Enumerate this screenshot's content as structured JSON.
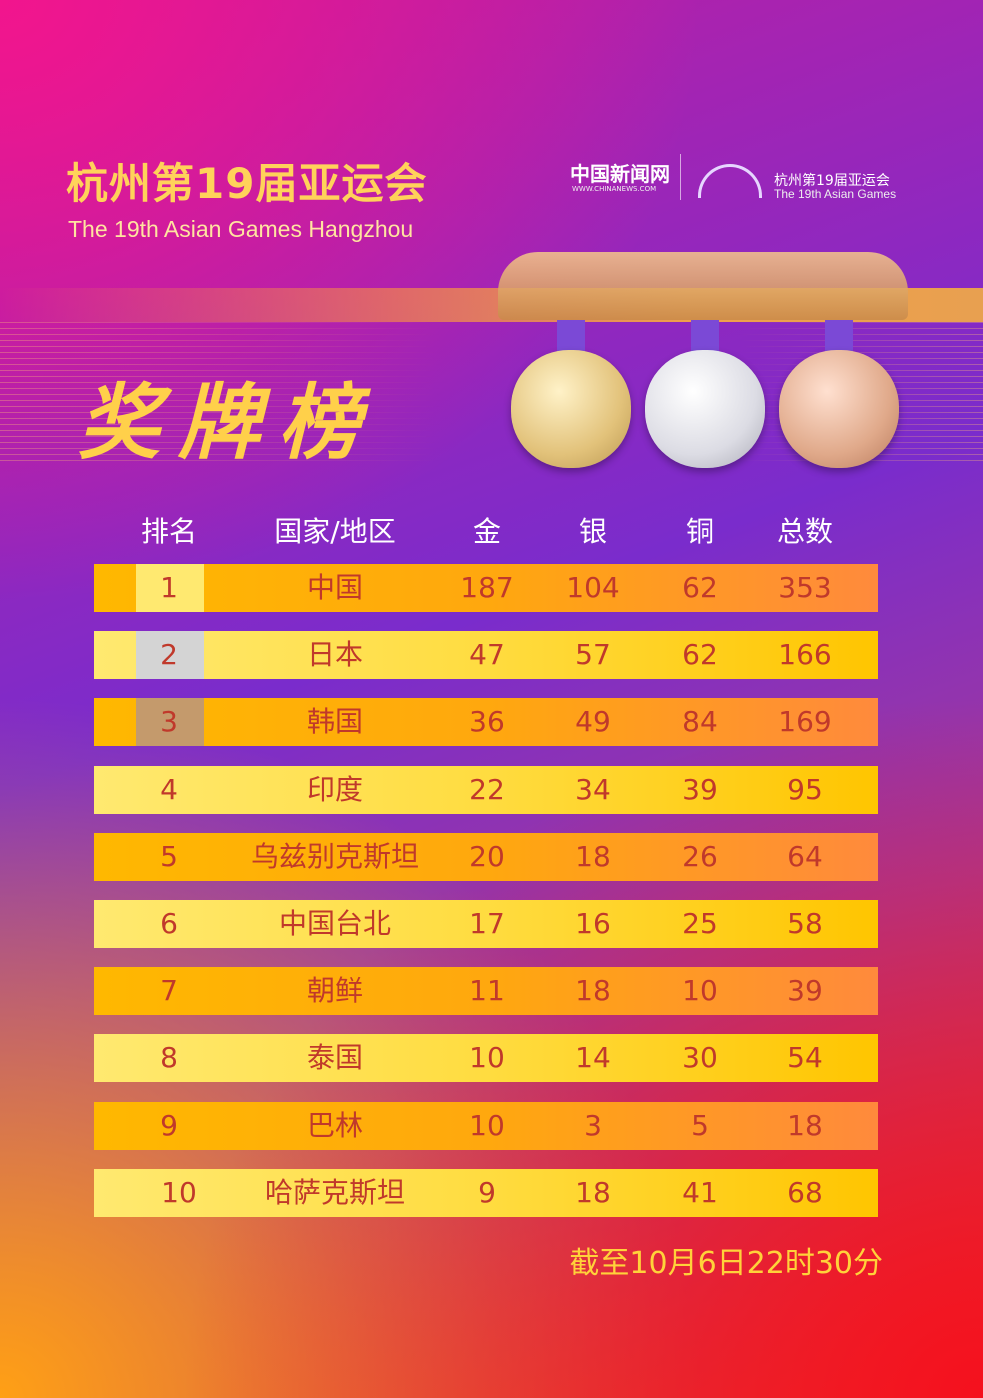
{
  "header": {
    "title_cn": "杭州第19届亚运会",
    "title_en": "The 19th Asian Games Hangzhou",
    "heading": "奖牌榜"
  },
  "logos": {
    "chinanews": "中国新闻网",
    "chinanews_url": "WWW.CHINANEWS.COM",
    "asiangames_cn": "杭州第19届亚运会",
    "asiangames_en": "The 19th Asian Games"
  },
  "colors": {
    "gold_rank": "#ffe970",
    "silver_rank": "#d4d4d4",
    "bronze_rank": "#c49a6c",
    "text": "#c0392b",
    "heading": "#ffd04a"
  },
  "chart_data": {
    "type": "table",
    "columns": [
      "排名",
      "国家/地区",
      "金",
      "银",
      "铜",
      "总数"
    ],
    "rows": [
      [
        "1",
        "中国",
        "187",
        "104",
        "62",
        "353"
      ],
      [
        "2",
        "日本",
        "47",
        "57",
        "62",
        "166"
      ],
      [
        "3",
        "韩国",
        "36",
        "49",
        "84",
        "169"
      ],
      [
        "4",
        "印度",
        "22",
        "34",
        "39",
        "95"
      ],
      [
        "5",
        "乌兹别克斯坦",
        "20",
        "18",
        "26",
        "64"
      ],
      [
        "6",
        "中国台北",
        "17",
        "16",
        "25",
        "58"
      ],
      [
        "7",
        "朝鲜",
        "11",
        "18",
        "10",
        "39"
      ],
      [
        "8",
        "泰国",
        "10",
        "14",
        "30",
        "54"
      ],
      [
        "9",
        "巴林",
        "10",
        "3",
        "5",
        "18"
      ],
      [
        "10",
        "哈萨克斯坦",
        "9",
        "18",
        "41",
        "68"
      ]
    ]
  },
  "footnote": "截至10月6日22时30分"
}
